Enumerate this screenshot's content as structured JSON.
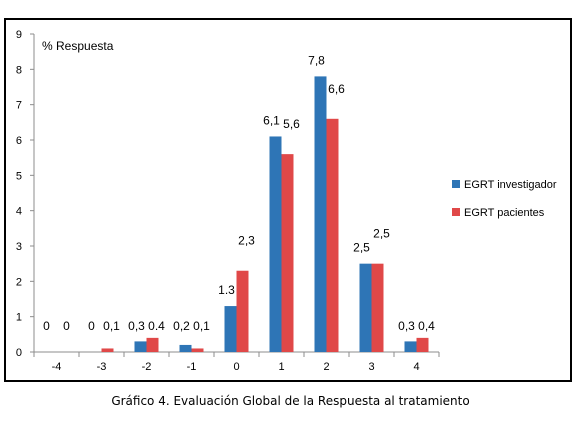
{
  "chart_data": {
    "type": "bar",
    "title": "",
    "ylabel": "% Respuesta",
    "xlabel": "",
    "categories": [
      "-4",
      "-3",
      "-2",
      "-1",
      "0",
      "1",
      "2",
      "3",
      "4"
    ],
    "ylim": [
      0,
      9
    ],
    "yticks": [
      "0",
      "1",
      "2",
      "3",
      "4",
      "5",
      "6",
      "7",
      "8",
      "9"
    ],
    "grid": false,
    "legend_position": "right",
    "series": [
      {
        "name": "EGRT investigador",
        "color": "#2e75b6",
        "values": [
          0,
          0,
          0.3,
          0.2,
          1.3,
          6.1,
          7.8,
          2.5,
          0.3
        ],
        "labels": [
          "0",
          "0",
          "0,3",
          "0,2",
          "1.3",
          "6,1",
          "7,8",
          "2,5",
          "0,3"
        ]
      },
      {
        "name": "EGRT pacientes",
        "color": "#e04848",
        "values": [
          0,
          0.1,
          0.4,
          0.1,
          2.3,
          5.6,
          6.6,
          2.5,
          0.4
        ],
        "labels": [
          "0",
          "0,1",
          "0.4",
          "0,1",
          "2,3",
          "5,6",
          "6,6",
          "2,5",
          "0,4"
        ]
      }
    ]
  },
  "caption": "Gráfico 4. Evaluación Global de la Respuesta al tratamiento"
}
